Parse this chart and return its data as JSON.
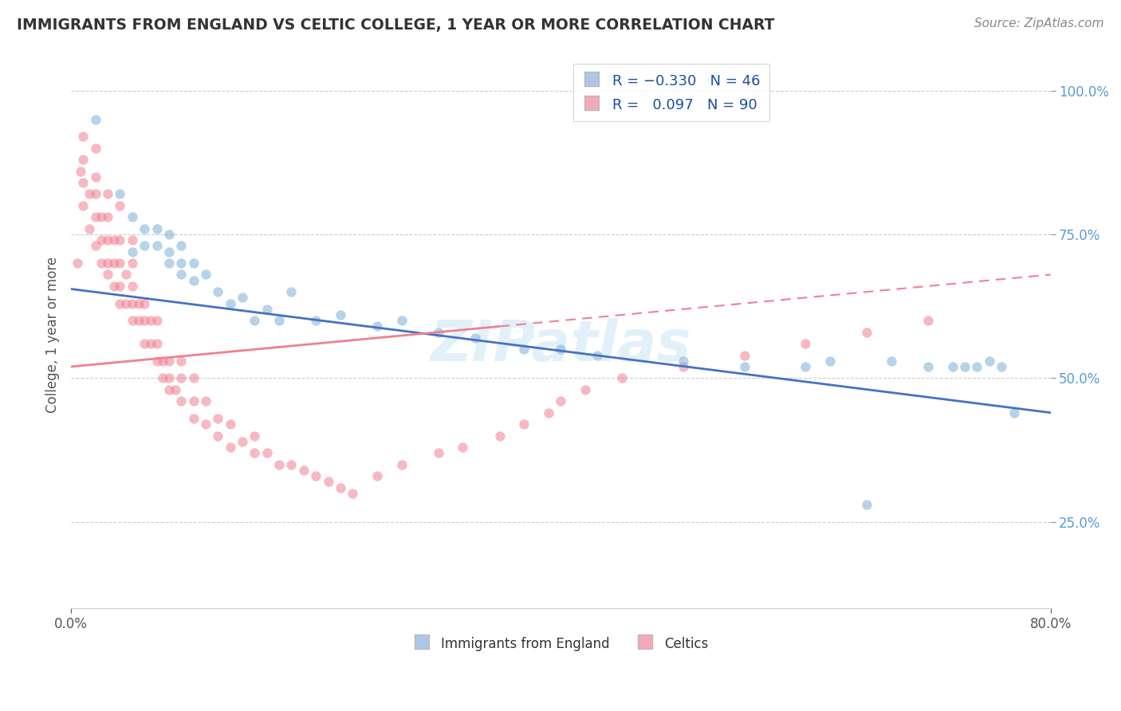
{
  "title": "IMMIGRANTS FROM ENGLAND VS CELTIC COLLEGE, 1 YEAR OR MORE CORRELATION CHART",
  "source_text": "Source: ZipAtlas.com",
  "ylabel": "College, 1 year or more",
  "xlim": [
    0.0,
    0.8
  ],
  "ylim": [
    0.1,
    1.05
  ],
  "ytick_labels": [
    "25.0%",
    "50.0%",
    "75.0%",
    "100.0%"
  ],
  "ytick_positions": [
    0.25,
    0.5,
    0.75,
    1.0
  ],
  "legend_label_blue": "Immigrants from England",
  "legend_label_pink": "Celtics",
  "blue_scatter_color": "#7aafd4",
  "pink_scatter_color": "#f08090",
  "blue_legend_color": "#aec6e8",
  "pink_legend_color": "#f4a8b8",
  "blue_line_color": "#4472c4",
  "pink_line_color": "#e07090",
  "blue_line_start_y": 0.655,
  "blue_line_end_y": 0.44,
  "pink_line_start_y": 0.52,
  "pink_line_end_y": 0.68,
  "blue_scatter_x": [
    0.02,
    0.04,
    0.05,
    0.05,
    0.06,
    0.06,
    0.07,
    0.07,
    0.08,
    0.08,
    0.08,
    0.09,
    0.09,
    0.09,
    0.1,
    0.1,
    0.11,
    0.12,
    0.13,
    0.14,
    0.15,
    0.16,
    0.17,
    0.18,
    0.2,
    0.22,
    0.25,
    0.27,
    0.3,
    0.33,
    0.37,
    0.4,
    0.43,
    0.5,
    0.55,
    0.6,
    0.62,
    0.65,
    0.67,
    0.7,
    0.72,
    0.73,
    0.74,
    0.75,
    0.76,
    0.77
  ],
  "blue_scatter_y": [
    0.95,
    0.82,
    0.72,
    0.78,
    0.73,
    0.76,
    0.73,
    0.76,
    0.7,
    0.72,
    0.75,
    0.68,
    0.7,
    0.73,
    0.67,
    0.7,
    0.68,
    0.65,
    0.63,
    0.64,
    0.6,
    0.62,
    0.6,
    0.65,
    0.6,
    0.61,
    0.59,
    0.6,
    0.58,
    0.57,
    0.55,
    0.55,
    0.54,
    0.53,
    0.52,
    0.52,
    0.53,
    0.28,
    0.53,
    0.52,
    0.52,
    0.52,
    0.52,
    0.53,
    0.52,
    0.44
  ],
  "pink_scatter_x": [
    0.005,
    0.008,
    0.01,
    0.01,
    0.01,
    0.01,
    0.015,
    0.015,
    0.02,
    0.02,
    0.02,
    0.02,
    0.02,
    0.025,
    0.025,
    0.025,
    0.03,
    0.03,
    0.03,
    0.03,
    0.03,
    0.035,
    0.035,
    0.035,
    0.04,
    0.04,
    0.04,
    0.04,
    0.04,
    0.045,
    0.045,
    0.05,
    0.05,
    0.05,
    0.05,
    0.05,
    0.055,
    0.055,
    0.06,
    0.06,
    0.06,
    0.065,
    0.065,
    0.07,
    0.07,
    0.07,
    0.075,
    0.075,
    0.08,
    0.08,
    0.08,
    0.085,
    0.09,
    0.09,
    0.09,
    0.1,
    0.1,
    0.1,
    0.11,
    0.11,
    0.12,
    0.12,
    0.13,
    0.13,
    0.14,
    0.15,
    0.15,
    0.16,
    0.17,
    0.18,
    0.19,
    0.2,
    0.21,
    0.22,
    0.23,
    0.25,
    0.27,
    0.3,
    0.32,
    0.35,
    0.37,
    0.39,
    0.4,
    0.42,
    0.45,
    0.5,
    0.55,
    0.6,
    0.65,
    0.7
  ],
  "pink_scatter_y": [
    0.7,
    0.86,
    0.8,
    0.84,
    0.88,
    0.92,
    0.76,
    0.82,
    0.73,
    0.78,
    0.82,
    0.85,
    0.9,
    0.7,
    0.74,
    0.78,
    0.68,
    0.7,
    0.74,
    0.78,
    0.82,
    0.66,
    0.7,
    0.74,
    0.63,
    0.66,
    0.7,
    0.74,
    0.8,
    0.63,
    0.68,
    0.6,
    0.63,
    0.66,
    0.7,
    0.74,
    0.6,
    0.63,
    0.56,
    0.6,
    0.63,
    0.56,
    0.6,
    0.53,
    0.56,
    0.6,
    0.5,
    0.53,
    0.48,
    0.5,
    0.53,
    0.48,
    0.46,
    0.5,
    0.53,
    0.43,
    0.46,
    0.5,
    0.42,
    0.46,
    0.4,
    0.43,
    0.38,
    0.42,
    0.39,
    0.37,
    0.4,
    0.37,
    0.35,
    0.35,
    0.34,
    0.33,
    0.32,
    0.31,
    0.3,
    0.33,
    0.35,
    0.37,
    0.38,
    0.4,
    0.42,
    0.44,
    0.46,
    0.48,
    0.5,
    0.52,
    0.54,
    0.56,
    0.58,
    0.6
  ]
}
